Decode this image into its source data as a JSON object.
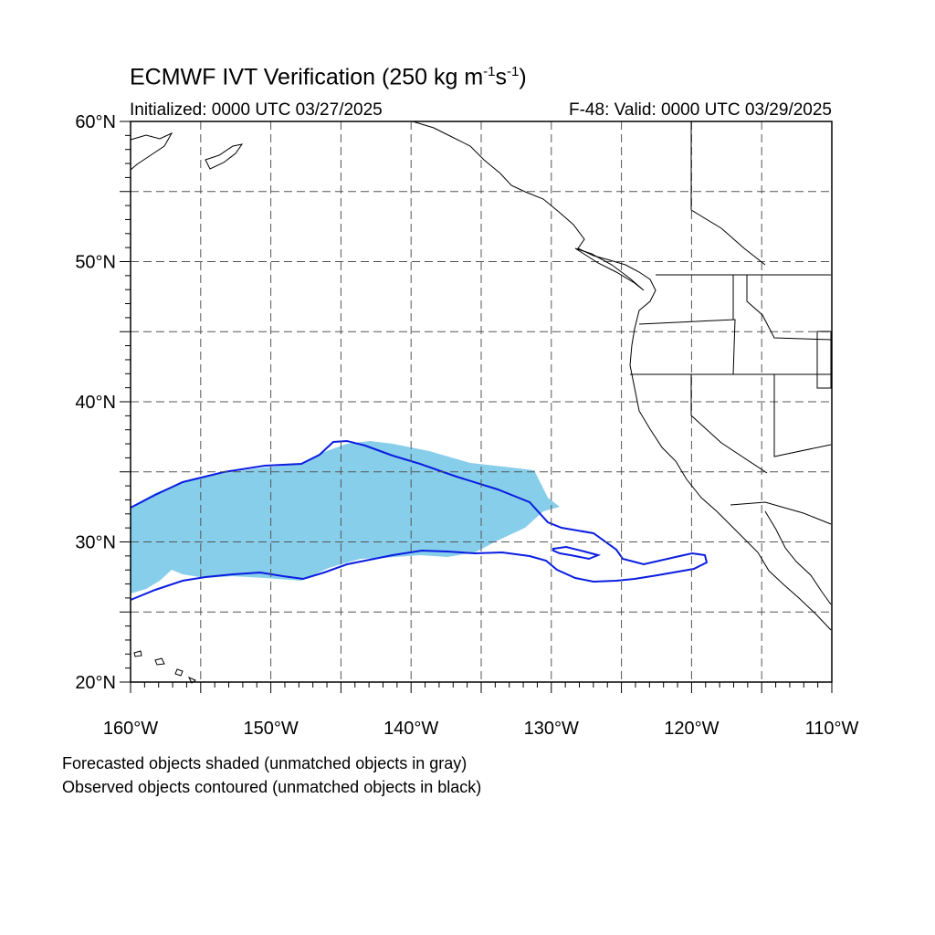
{
  "title": {
    "main": "ECMWF IVT Verification (250 kg m",
    "exp1": "-1",
    "mid": "s",
    "exp2": "-1",
    "close": ")"
  },
  "subtitle": {
    "initialized": "Initialized: 0000 UTC 03/27/2025",
    "valid": "F-48: Valid: 0000 UTC 03/29/2025"
  },
  "map": {
    "lon_range": [
      -160,
      -110
    ],
    "lat_range": [
      20,
      60
    ],
    "grid": true,
    "lat_labels": [
      "20°N",
      "30°N",
      "40°N",
      "50°N",
      "60°N"
    ],
    "lon_labels": [
      "160°W",
      "150°W",
      "140°W",
      "130°W",
      "120°W",
      "110°W"
    ],
    "colors": {
      "forecast_fill": "#87ceeb",
      "observed_contour": "#0a1de0",
      "coastline": "#000000",
      "grid": "#555555"
    }
  },
  "footnotes": {
    "line1": "Forecasted objects shaded (unmatched objects in gray)",
    "line2": "Observed objects contoured (unmatched objects in black)"
  }
}
